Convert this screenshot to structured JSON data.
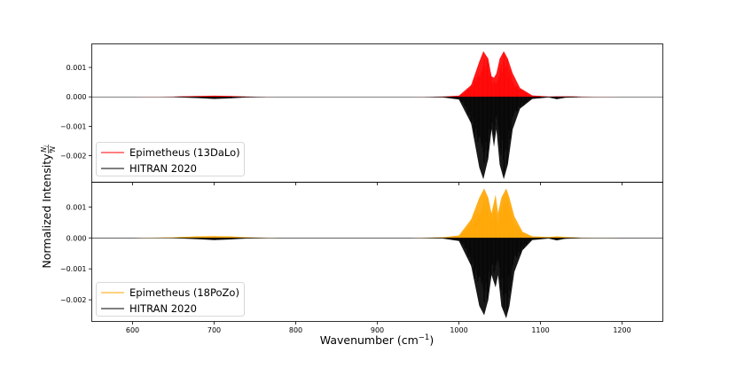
{
  "chart_data": [
    {
      "type": "line",
      "panel": "top",
      "xlim": [
        550,
        1250
      ],
      "ylim": [
        -0.0029,
        0.0018
      ],
      "yticks": [
        -0.002,
        -0.001,
        0.0,
        0.001
      ],
      "ytick_labels": [
        "−0.002",
        "−0.001",
        "0.000",
        "0.001"
      ],
      "legend_position": "lower-left",
      "series": [
        {
          "name": "Epimetheus (13DaLo)",
          "color": "#ff0000",
          "style": "dense-stick-spectrum-positive",
          "x": [
            550,
            600,
            650,
            680,
            700,
            720,
            740,
            780,
            850,
            890,
            940,
            980,
            1000,
            1015,
            1025,
            1030,
            1036,
            1040,
            1043,
            1046,
            1050,
            1055,
            1060,
            1066,
            1075,
            1090,
            1110,
            1120,
            1130,
            1150,
            1200,
            1250
          ],
          "values": [
            0.0,
            0.0,
            1e-05,
            3e-05,
            4e-05,
            3e-05,
            1e-05,
            0.0,
            0.0,
            0.0,
            0.0,
            1e-05,
            4e-05,
            0.0004,
            0.0012,
            0.00155,
            0.0013,
            0.0007,
            0.00065,
            0.0008,
            0.0013,
            0.00155,
            0.0013,
            0.0008,
            0.0003,
            5e-05,
            1e-05,
            2e-05,
            2e-05,
            1e-05,
            0.0,
            0.0
          ]
        },
        {
          "name": "HITRAN 2020",
          "color": "#000000",
          "style": "dense-stick-spectrum-negative",
          "x": [
            550,
            600,
            650,
            680,
            700,
            720,
            740,
            780,
            850,
            890,
            940,
            980,
            1000,
            1015,
            1025,
            1030,
            1036,
            1040,
            1043,
            1046,
            1050,
            1055,
            1060,
            1066,
            1075,
            1090,
            1110,
            1120,
            1130,
            1150,
            1200,
            1250
          ],
          "values": [
            0.0,
            0.0,
            -1e-05,
            -4e-05,
            -7e-05,
            -5e-05,
            -2e-05,
            0.0,
            0.0,
            0.0,
            0.0,
            -2e-05,
            -9e-05,
            -0.0009,
            -0.0024,
            -0.0028,
            -0.0021,
            -0.0011,
            -0.0017,
            -0.0011,
            -0.0023,
            -0.0028,
            -0.0023,
            -0.0011,
            -0.0004,
            -7e-05,
            -2e-05,
            -8e-05,
            -3e-05,
            -1e-05,
            0.0,
            0.0
          ]
        }
      ]
    },
    {
      "type": "line",
      "panel": "bottom",
      "xlim": [
        550,
        1250
      ],
      "ylim": [
        -0.0027,
        0.0018
      ],
      "yticks": [
        -0.002,
        -0.001,
        0.0,
        0.001
      ],
      "ytick_labels": [
        "−0.002",
        "−0.001",
        "0.000",
        "0.001"
      ],
      "legend_position": "lower-left",
      "series": [
        {
          "name": "Epimetheus (18PoZo)",
          "color": "#ffa500",
          "style": "dense-stick-spectrum-positive",
          "x": [
            550,
            600,
            650,
            680,
            700,
            720,
            740,
            780,
            850,
            890,
            940,
            980,
            1000,
            1015,
            1025,
            1031,
            1036,
            1040,
            1045,
            1048,
            1052,
            1058,
            1062,
            1068,
            1078,
            1090,
            1110,
            1120,
            1130,
            1150,
            1200,
            1250
          ],
          "values": [
            0.0,
            0.0,
            2e-05,
            5e-05,
            6e-05,
            5e-05,
            2e-05,
            0.0,
            0.0,
            0.0,
            0.0,
            2e-05,
            8e-05,
            0.0006,
            0.0013,
            0.0016,
            0.0013,
            0.0008,
            0.0014,
            0.0008,
            0.0013,
            0.0016,
            0.0013,
            0.0007,
            0.0002,
            5e-05,
            3e-05,
            5e-05,
            3e-05,
            1e-05,
            0.0,
            0.0
          ]
        },
        {
          "name": "HITRAN 2020",
          "color": "#000000",
          "style": "dense-stick-spectrum-negative",
          "x": [
            550,
            600,
            650,
            680,
            700,
            720,
            740,
            780,
            850,
            890,
            940,
            980,
            1000,
            1015,
            1025,
            1031,
            1036,
            1040,
            1045,
            1048,
            1052,
            1058,
            1062,
            1068,
            1078,
            1090,
            1110,
            1120,
            1130,
            1150,
            1200,
            1250
          ],
          "values": [
            0.0,
            0.0,
            -1e-05,
            -4e-05,
            -7e-05,
            -5e-05,
            -2e-05,
            0.0,
            0.0,
            0.0,
            0.0,
            -2e-05,
            -0.0001,
            -0.0009,
            -0.0022,
            -0.0025,
            -0.002,
            -0.0012,
            -0.0016,
            -0.0012,
            -0.0022,
            -0.0026,
            -0.0022,
            -0.0011,
            -0.0004,
            -7e-05,
            -2e-05,
            -8e-05,
            -3e-05,
            -1e-05,
            0.0,
            0.0
          ]
        }
      ]
    }
  ],
  "shared": {
    "xlabel": "Wavenumber (cm",
    "xlabel_sup": "−1",
    "xlabel_end": ")",
    "ylabel": "Normalized Intensity,",
    "ylabel_frac_num": "N",
    "ylabel_frac_num_sub": "i",
    "ylabel_frac_den": "N",
    "xticks": [
      600,
      700,
      800,
      900,
      1000,
      1100,
      1200
    ],
    "xtick_labels": [
      "600",
      "700",
      "800",
      "900",
      "1000",
      "1100",
      "1200"
    ]
  }
}
